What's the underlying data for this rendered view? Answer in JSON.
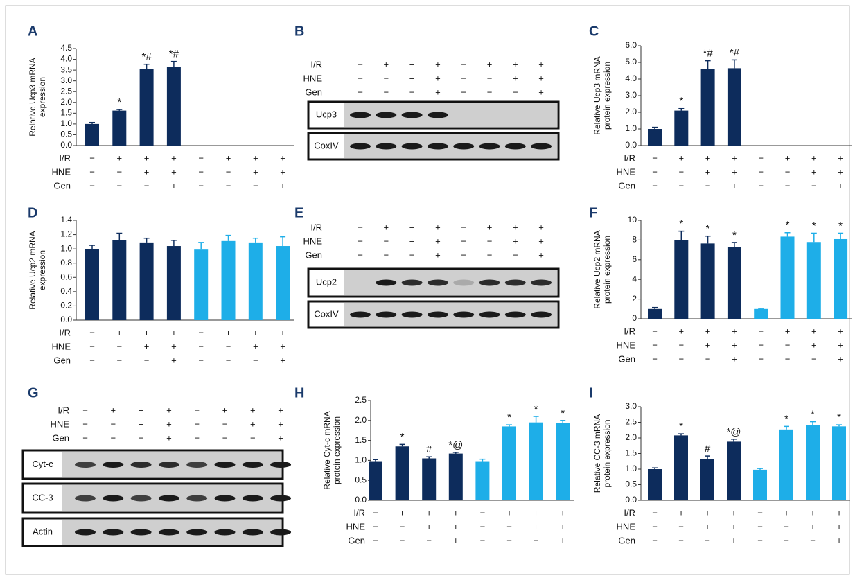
{
  "chart_data": [
    {
      "type": "bar",
      "panel": "A",
      "y_label": [
        "Relative Ucp3 mRNA",
        "expression"
      ],
      "values": [
        1.0,
        1.62,
        3.55,
        3.65,
        null,
        null,
        null,
        null
      ],
      "errors": [
        0.07,
        0.05,
        0.22,
        0.25,
        null,
        null,
        null,
        null
      ],
      "annotations": [
        null,
        "*",
        "*#",
        "*#",
        null,
        null,
        null,
        null
      ],
      "colors": [
        "#0d2c5c",
        "#0d2c5c",
        "#0d2c5c",
        "#0d2c5c",
        "#0d2c5c",
        "#0d2c5c",
        "#0d2c5c",
        "#0d2c5c"
      ],
      "ylim": [
        0,
        4.5
      ],
      "yticks": [
        {
          "value": 0,
          "label": "0.0"
        },
        0.5,
        {
          "value": 1,
          "label": "1.0"
        },
        1.5,
        {
          "value": 2,
          "label": "2.0"
        },
        2.5,
        {
          "value": 3,
          "label": "3.0"
        },
        3.5,
        {
          "value": 4,
          "label": "4.0"
        },
        4.5
      ],
      "conditions": [
        {
          "name": "I/R",
          "marks": [
            "−",
            "+",
            "+",
            "+",
            "−",
            "+",
            "+",
            "+"
          ]
        },
        {
          "name": "HNE",
          "marks": [
            "−",
            "−",
            "+",
            "+",
            "−",
            "−",
            "+",
            "+"
          ]
        },
        {
          "name": "Gen",
          "marks": [
            "−",
            "−",
            "−",
            "+",
            "−",
            "−",
            "−",
            "+"
          ]
        }
      ]
    },
    {
      "type": "bar",
      "panel": "C",
      "y_label": [
        "Relative Ucp3 mRNA",
        "protein expression"
      ],
      "values": [
        1.0,
        2.1,
        4.6,
        4.65,
        null,
        null,
        null,
        null
      ],
      "errors": [
        0.1,
        0.12,
        0.5,
        0.5,
        null,
        null,
        null,
        null
      ],
      "annotations": [
        null,
        "*",
        "*#",
        "*#",
        null,
        null,
        null,
        null
      ],
      "colors": [
        "#0d2c5c",
        "#0d2c5c",
        "#0d2c5c",
        "#0d2c5c",
        "#0d2c5c",
        "#0d2c5c",
        "#0d2c5c",
        "#0d2c5c"
      ],
      "ylim": [
        0,
        6
      ],
      "yticks": [
        {
          "value": 0,
          "label": "0.0"
        },
        {
          "value": 1,
          "label": "1.0"
        },
        {
          "value": 2,
          "label": "2.0"
        },
        {
          "value": 3,
          "label": "3.0"
        },
        {
          "value": 4,
          "label": "4.0"
        },
        {
          "value": 5,
          "label": "5.0"
        },
        {
          "value": 6,
          "label": "6.0"
        }
      ],
      "conditions": [
        {
          "name": "I/R",
          "marks": [
            "−",
            "+",
            "+",
            "+",
            "−",
            "+",
            "+",
            "+"
          ]
        },
        {
          "name": "HNE",
          "marks": [
            "−",
            "−",
            "+",
            "+",
            "−",
            "−",
            "+",
            "+"
          ]
        },
        {
          "name": "Gen",
          "marks": [
            "−",
            "−",
            "−",
            "+",
            "−",
            "−",
            "−",
            "+"
          ]
        }
      ]
    },
    {
      "type": "bar",
      "panel": "D",
      "y_label": [
        "Relative Ucp2 mRNA",
        "expression"
      ],
      "values": [
        1.0,
        1.12,
        1.09,
        1.04,
        0.99,
        1.11,
        1.09,
        1.04
      ],
      "errors": [
        0.05,
        0.1,
        0.06,
        0.08,
        0.1,
        0.08,
        0.06,
        0.13
      ],
      "annotations": [
        null,
        null,
        null,
        null,
        null,
        null,
        null,
        null
      ],
      "colors": [
        "#0d2c5c",
        "#0d2c5c",
        "#0d2c5c",
        "#0d2c5c",
        "#1eaee8",
        "#1eaee8",
        "#1eaee8",
        "#1eaee8"
      ],
      "ylim": [
        0,
        1.4
      ],
      "yticks": [
        {
          "value": 0,
          "label": "0.0"
        },
        0.2,
        0.4,
        0.6,
        0.8,
        {
          "value": 1,
          "label": "1.0"
        },
        1.2,
        1.4
      ],
      "conditions": [
        {
          "name": "I/R",
          "marks": [
            "−",
            "+",
            "+",
            "+",
            "−",
            "+",
            "+",
            "+"
          ]
        },
        {
          "name": "HNE",
          "marks": [
            "−",
            "−",
            "+",
            "+",
            "−",
            "−",
            "+",
            "+"
          ]
        },
        {
          "name": "Gen",
          "marks": [
            "−",
            "−",
            "−",
            "+",
            "−",
            "−",
            "−",
            "+"
          ]
        }
      ]
    },
    {
      "type": "bar",
      "panel": "F",
      "y_label": [
        "Relative Ucp2 mRNA",
        "protein expression"
      ],
      "values": [
        1.0,
        8.0,
        7.65,
        7.3,
        1.0,
        8.35,
        7.8,
        8.1
      ],
      "errors": [
        0.15,
        0.9,
        0.75,
        0.45,
        0.05,
        0.4,
        0.9,
        0.6
      ],
      "annotations": [
        null,
        "*",
        "*",
        "*",
        null,
        "*",
        "*",
        "*"
      ],
      "colors": [
        "#0d2c5c",
        "#0d2c5c",
        "#0d2c5c",
        "#0d2c5c",
        "#1eaee8",
        "#1eaee8",
        "#1eaee8",
        "#1eaee8"
      ],
      "ylim": [
        0,
        10
      ],
      "yticks": [
        0,
        2,
        4,
        6,
        8,
        10
      ],
      "conditions": [
        {
          "name": "I/R",
          "marks": [
            "−",
            "+",
            "+",
            "+",
            "−",
            "+",
            "+",
            "+"
          ]
        },
        {
          "name": "HNE",
          "marks": [
            "−",
            "−",
            "+",
            "+",
            "−",
            "−",
            "+",
            "+"
          ]
        },
        {
          "name": "Gen",
          "marks": [
            "−",
            "−",
            "−",
            "+",
            "−",
            "−",
            "−",
            "+"
          ]
        }
      ]
    },
    {
      "type": "bar",
      "panel": "H",
      "y_label": [
        "Relative Cyt-c mRNA",
        "protein expression"
      ],
      "values": [
        0.98,
        1.35,
        1.05,
        1.17,
        0.98,
        1.85,
        1.95,
        1.93
      ],
      "errors": [
        0.04,
        0.05,
        0.04,
        0.03,
        0.05,
        0.04,
        0.15,
        0.07
      ],
      "annotations": [
        null,
        "*",
        "#",
        "*@",
        null,
        "*",
        "*",
        "*"
      ],
      "colors": [
        "#0d2c5c",
        "#0d2c5c",
        "#0d2c5c",
        "#0d2c5c",
        "#1eaee8",
        "#1eaee8",
        "#1eaee8",
        "#1eaee8"
      ],
      "ylim": [
        0,
        2.5
      ],
      "yticks": [
        {
          "value": 0,
          "label": "0.0"
        },
        0.5,
        {
          "value": 1,
          "label": "1.0"
        },
        1.5,
        {
          "value": 2,
          "label": "2.0"
        },
        2.5
      ],
      "conditions": [
        {
          "name": "I/R",
          "marks": [
            "−",
            "+",
            "+",
            "+",
            "−",
            "+",
            "+",
            "+"
          ]
        },
        {
          "name": "HNE",
          "marks": [
            "−",
            "−",
            "+",
            "+",
            "−",
            "−",
            "+",
            "+"
          ]
        },
        {
          "name": "Gen",
          "marks": [
            "−",
            "−",
            "−",
            "+",
            "−",
            "−",
            "−",
            "+"
          ]
        }
      ]
    },
    {
      "type": "bar",
      "panel": "I",
      "y_label": [
        "Relative CC-3 mRNA",
        "protein expression"
      ],
      "values": [
        1.0,
        2.08,
        1.32,
        1.88,
        0.98,
        2.27,
        2.42,
        2.37
      ],
      "errors": [
        0.04,
        0.05,
        0.1,
        0.08,
        0.04,
        0.1,
        0.1,
        0.05
      ],
      "annotations": [
        null,
        "*",
        "#",
        "*@",
        null,
        "*",
        "*",
        "*"
      ],
      "colors": [
        "#0d2c5c",
        "#0d2c5c",
        "#0d2c5c",
        "#0d2c5c",
        "#1eaee8",
        "#1eaee8",
        "#1eaee8",
        "#1eaee8"
      ],
      "ylim": [
        0,
        3
      ],
      "yticks": [
        {
          "value": 0,
          "label": "0.0"
        },
        0.5,
        {
          "value": 1,
          "label": "1.0"
        },
        1.5,
        {
          "value": 2,
          "label": "2.0"
        },
        2.5,
        {
          "value": 3,
          "label": "3.0"
        }
      ],
      "conditions": [
        {
          "name": "I/R",
          "marks": [
            "−",
            "+",
            "+",
            "+",
            "−",
            "+",
            "+",
            "+"
          ]
        },
        {
          "name": "HNE",
          "marks": [
            "−",
            "−",
            "+",
            "+",
            "−",
            "−",
            "+",
            "+"
          ]
        },
        {
          "name": "Gen",
          "marks": [
            "−",
            "−",
            "−",
            "+",
            "−",
            "−",
            "−",
            "+"
          ]
        }
      ]
    }
  ],
  "blots": [
    {
      "panel": "B",
      "lanes": [
        "Ucp3",
        "CoxIV"
      ],
      "conditions": [
        {
          "name": "I/R",
          "marks": [
            "−",
            "+",
            "+",
            "+",
            "−",
            "+",
            "+",
            "+"
          ]
        },
        {
          "name": "HNE",
          "marks": [
            "−",
            "−",
            "+",
            "+",
            "−",
            "−",
            "+",
            "+"
          ]
        },
        {
          "name": "Gen",
          "marks": [
            "−",
            "−",
            "−",
            "+",
            "−",
            "−",
            "−",
            "+"
          ]
        }
      ]
    },
    {
      "panel": "E",
      "lanes": [
        "Ucp2",
        "CoxIV"
      ],
      "conditions": [
        {
          "name": "I/R",
          "marks": [
            "−",
            "+",
            "+",
            "+",
            "−",
            "+",
            "+",
            "+"
          ]
        },
        {
          "name": "HNE",
          "marks": [
            "−",
            "−",
            "+",
            "+",
            "−",
            "−",
            "+",
            "+"
          ]
        },
        {
          "name": "Gen",
          "marks": [
            "−",
            "−",
            "−",
            "+",
            "−",
            "−",
            "−",
            "+"
          ]
        }
      ]
    },
    {
      "panel": "G",
      "lanes": [
        "Cyt-c",
        "CC-3",
        "Actin"
      ],
      "conditions": [
        {
          "name": "I/R",
          "marks": [
            "−",
            "+",
            "+",
            "+",
            "−",
            "+",
            "+",
            "+"
          ]
        },
        {
          "name": "HNE",
          "marks": [
            "−",
            "−",
            "+",
            "+",
            "−",
            "−",
            "+",
            "+"
          ]
        },
        {
          "name": "Gen",
          "marks": [
            "−",
            "−",
            "−",
            "+",
            "−",
            "−",
            "−",
            "+"
          ]
        }
      ]
    }
  ]
}
